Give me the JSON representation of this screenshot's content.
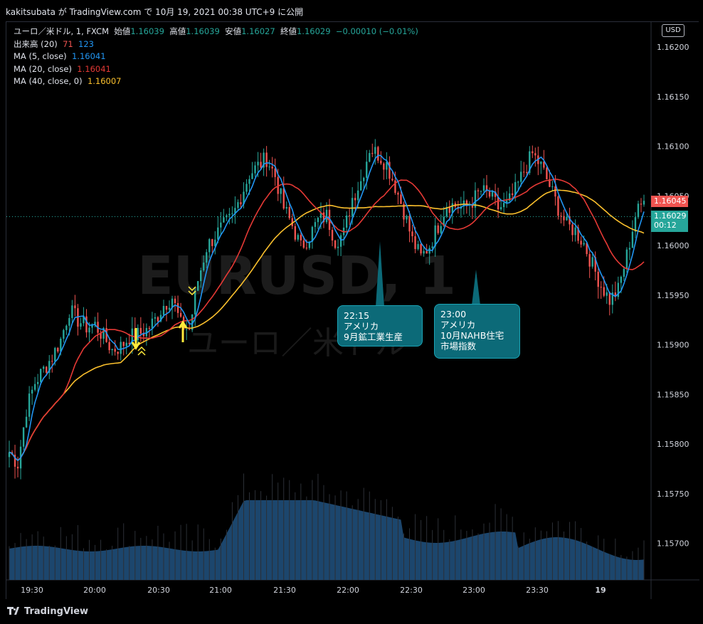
{
  "header": {
    "text": "kakitsubata が TradingView.com で 10月 19, 2021 00:38 UTC+9 に公開"
  },
  "legend": {
    "main": {
      "label": "ユーロ／米ドル, 1, FXCM",
      "open_label": "始値",
      "open": "1.16039",
      "high_label": "高値",
      "high": "1.16039",
      "low_label": "安値",
      "low": "1.16027",
      "close_label": "終値",
      "close": "1.16029",
      "change": "−0.00010 (−0.01%)"
    },
    "volume": {
      "label": "出来高 (20)",
      "v1": "71",
      "v2": "123"
    },
    "ma5": {
      "label": "MA (5, close)",
      "value": "1.16041"
    },
    "ma20": {
      "label": "MA (20, close)",
      "value": "1.16041"
    },
    "ma40": {
      "label": "MA (40, close, 0)",
      "value": "1.16007"
    }
  },
  "currency_button": "USD",
  "price_labels": {
    "last": "1.16045",
    "current": "1.16029",
    "countdown": "00:12"
  },
  "annotations": [
    {
      "time": "22:15",
      "line1": "アメリカ",
      "line2": "9月鉱工業生産",
      "line3": ""
    },
    {
      "time": "23:00",
      "line1": "アメリカ",
      "line2": "10月NAHB住宅",
      "line3": "市場指数"
    }
  ],
  "watermark": {
    "symbol": "EURUSD, 1",
    "name": "ユーロ／米ドル"
  },
  "footer": {
    "brand": "TradingView"
  },
  "colors": {
    "up": "#26a69a",
    "down": "#ef5350",
    "ma5": "#2196f3",
    "ma20": "#e53935",
    "ma40": "#fbc02d",
    "volume": "#1e4a73",
    "background": "#000000"
  },
  "chart_data": {
    "type": "candlestick",
    "y_axis": {
      "min": 1.1566,
      "max": 1.16215,
      "ticks": [
        "1.16200",
        "1.16150",
        "1.16100",
        "1.16050",
        "1.16000",
        "1.15950",
        "1.15900",
        "1.15850",
        "1.15800",
        "1.15750",
        "1.15700"
      ]
    },
    "x_axis": {
      "ticks": [
        "19:30",
        "20:00",
        "20:30",
        "21:00",
        "21:30",
        "22:00",
        "22:30",
        "23:00",
        "23:30",
        "19"
      ]
    },
    "series_close": [
      1.15792,
      1.1578,
      1.15835,
      1.15862,
      1.15875,
      1.15888,
      1.15905,
      1.15935,
      1.15925,
      1.15918,
      1.1592,
      1.15908,
      1.15895,
      1.15898,
      1.15908,
      1.1591,
      1.15915,
      1.15925,
      1.1594,
      1.15948,
      1.1592,
      1.15915,
      1.15965,
      1.15998,
      1.1601,
      1.1602,
      1.16028,
      1.1605,
      1.16072,
      1.1608,
      1.16088,
      1.1607,
      1.16038,
      1.1602,
      1.15998,
      1.1601,
      1.16025,
      1.1603,
      1.16005,
      1.16012,
      1.16048,
      1.16065,
      1.16098,
      1.16092,
      1.16082,
      1.1606,
      1.16035,
      1.16005,
      1.15988,
      1.16,
      1.1602,
      1.16042,
      1.1604,
      1.16038,
      1.16045,
      1.16055,
      1.1605,
      1.16038,
      1.1604,
      1.16055,
      1.16075,
      1.16092,
      1.1608,
      1.1606,
      1.16038,
      1.1602,
      1.16015,
      1.16002,
      1.1598,
      1.1596,
      1.15945,
      1.15955,
      1.1599,
      1.1603,
      1.16045
    ],
    "annotation_times": [
      "22:15",
      "23:00"
    ]
  }
}
